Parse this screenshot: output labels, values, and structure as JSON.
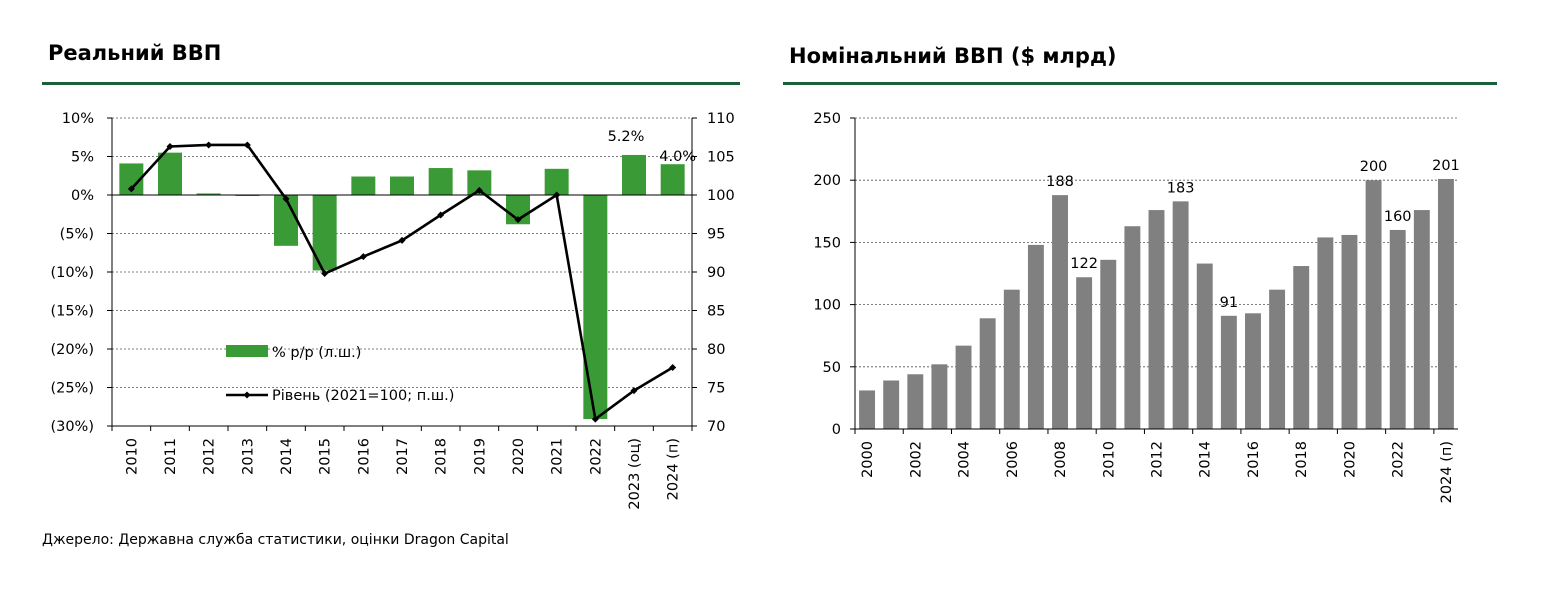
{
  "source": "Джерело: Державна служба статистики, оцінки Dragon Capital",
  "chart_data": [
    {
      "type": "bar+line",
      "title": "Реальний ВВП",
      "categories": [
        "2010",
        "2011",
        "2012",
        "2013",
        "2014",
        "2015",
        "2016",
        "2017",
        "2018",
        "2019",
        "2020",
        "2021",
        "2022",
        "2023 (оц)",
        "2024 (п)"
      ],
      "series": [
        {
          "name": "% р/р (л.ш.)",
          "type": "bar",
          "axis": "left",
          "color": "#3a9a35",
          "values": [
            4.1,
            5.5,
            0.2,
            0.0,
            -6.6,
            -9.8,
            2.4,
            2.4,
            3.5,
            3.2,
            -3.8,
            3.4,
            -29.1,
            5.2,
            4.0
          ]
        },
        {
          "name": "Рівень (2021=100; п.ш.)",
          "type": "line",
          "axis": "right",
          "color": "#000000",
          "values": [
            100.8,
            106.3,
            106.5,
            106.5,
            99.5,
            89.8,
            92.0,
            94.1,
            97.4,
            100.6,
            96.8,
            100.0,
            70.9,
            74.6,
            77.6
          ]
        }
      ],
      "data_labels": [
        {
          "category": "2023 (оц)",
          "text": "5.2%"
        },
        {
          "category": "2024 (п)",
          "text": "4.0%"
        }
      ],
      "y_left": {
        "ylim": [
          -30,
          10
        ],
        "ticks": [
          "(30%)",
          "(25%)",
          "(20%)",
          "(15%)",
          "(10%)",
          "(5%)",
          "0%",
          "5%",
          "10%"
        ]
      },
      "y_right": {
        "ylim": [
          70,
          110
        ],
        "ticks": [
          "70",
          "75",
          "80",
          "85",
          "90",
          "95",
          "100",
          "105",
          "110"
        ]
      },
      "grid": true,
      "legend": "center-left"
    },
    {
      "type": "bar",
      "title": "Номінальний ВВП ($ млрд)",
      "categories": [
        "2000",
        "2001",
        "2002",
        "2003",
        "2004",
        "2005",
        "2006",
        "2007",
        "2008",
        "2009",
        "2010",
        "2011",
        "2012",
        "2013",
        "2014",
        "2015",
        "2016",
        "2017",
        "2018",
        "2019",
        "2020",
        "2021",
        "2022",
        "2023",
        "2024 (п)"
      ],
      "tick_labels": [
        "2000",
        "2002",
        "2004",
        "2006",
        "2008",
        "2010",
        "2012",
        "2014",
        "2016",
        "2018",
        "2020",
        "2022",
        "2024 (п)"
      ],
      "values": [
        31,
        39,
        44,
        52,
        67,
        89,
        112,
        148,
        188,
        122,
        136,
        163,
        176,
        183,
        133,
        91,
        93,
        112,
        131,
        154,
        156,
        200,
        160,
        176,
        201
      ],
      "color": "#808080",
      "data_labels": [
        {
          "category": "2008",
          "text": "188"
        },
        {
          "category": "2009",
          "text": "122"
        },
        {
          "category": "2013",
          "text": "183"
        },
        {
          "category": "2015",
          "text": "91"
        },
        {
          "category": "2021",
          "text": "200"
        },
        {
          "category": "2022",
          "text": "160"
        },
        {
          "category": "2024 (п)",
          "text": "201"
        }
      ],
      "ylim": [
        0,
        250
      ],
      "y_ticks": [
        "0",
        "50",
        "100",
        "150",
        "200",
        "250"
      ],
      "grid": true
    }
  ]
}
